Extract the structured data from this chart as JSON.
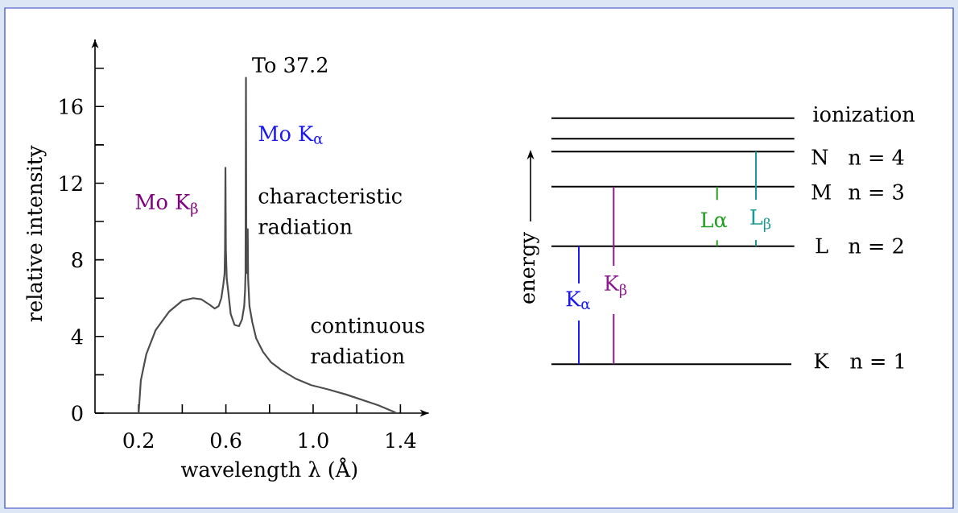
{
  "chart_data": [
    {
      "type": "line",
      "xlabel": "wavelength λ (Å)",
      "ylabel": "relative intensity",
      "x": [
        0.2,
        0.21,
        0.235,
        0.278,
        0.34,
        0.4,
        0.45,
        0.487,
        0.524,
        0.549,
        0.567,
        0.579,
        0.588,
        0.594,
        0.596,
        0.598,
        0.6,
        0.604,
        0.61,
        0.622,
        0.64,
        0.66,
        0.674,
        0.684,
        0.688,
        0.69,
        0.692,
        0.694,
        0.7,
        0.702,
        0.708,
        0.721,
        0.739,
        0.77,
        0.807,
        0.856,
        0.918,
        0.991,
        1.065,
        1.151,
        1.225,
        1.299,
        1.373,
        1.38
      ],
      "series": [
        {
          "color": "#4d4d4d",
          "values": [
            0,
            1.7,
            3.07,
            4.33,
            5.3,
            5.87,
            6.0,
            5.94,
            5.67,
            5.46,
            5.59,
            6.0,
            6.7,
            7.27,
            8.5,
            12.8,
            8.5,
            7.0,
            6.43,
            5.17,
            4.6,
            4.54,
            4.89,
            5.59,
            6.43,
            7.3,
            17.5,
            7.3,
            9.6,
            7.0,
            5.59,
            4.75,
            3.9,
            3.2,
            2.65,
            2.23,
            1.81,
            1.46,
            1.25,
            0.97,
            0.69,
            0.41,
            0.05,
            0
          ]
        }
      ],
      "xlim": [
        0,
        1.53
      ],
      "ylim": [
        0,
        19.5
      ],
      "xticks": [
        0.2,
        {
          "value": 0.4,
          "label": null
        },
        0.6,
        {
          "value": 0.8,
          "label": null
        },
        {
          "value": 1.0,
          "label": "1.0"
        },
        {
          "value": 1.2,
          "label": null
        },
        1.4
      ],
      "yticks": [
        0,
        {
          "value": 2,
          "label": null
        },
        4,
        {
          "value": 6,
          "label": null
        },
        8,
        {
          "value": 10,
          "label": null
        },
        12,
        {
          "value": 14,
          "label": null
        },
        16,
        {
          "value": 18,
          "label": null
        }
      ],
      "line_style": "solid",
      "annotations": [
        {
          "text": "To 37.2",
          "x": 0.692,
          "y": 17.5
        },
        "Mo K$_{β}$",
        "Mo K$_{α}$",
        "characteristic radiation",
        "continuous radiation"
      ]
    },
    {
      "type": "other",
      "ylabel": "energy",
      "annotations": [
        "ionization",
        "N",
        "n = 4",
        "M",
        "n = 3",
        "L",
        "n = 2",
        "K",
        "n = 1",
        "K$_{α}$",
        "K$_{β}$",
        "Lα",
        "L$_{β}$"
      ]
    }
  ]
}
